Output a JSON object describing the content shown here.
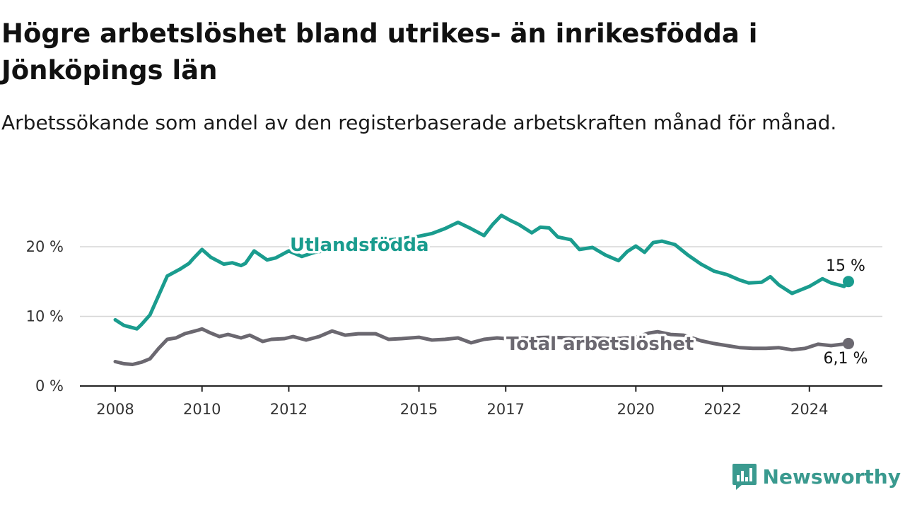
{
  "title": "Högre arbetslöshet bland utrikes- än inrikesfödda i Jönköpings län",
  "subtitle": "Arbetssökande som andel av den registerbaserade arbetskraften månad för månad.",
  "brand": {
    "name": "Newsworthy",
    "icon": "bar-chart-speech-bubble-icon",
    "color": "#3a9a8f"
  },
  "chart_data": {
    "type": "line",
    "x_unit": "year",
    "xlim": [
      2008,
      2025.2
    ],
    "ylim": [
      0,
      20
    ],
    "x_ticks": [
      2008,
      2010,
      2012,
      2015,
      2017,
      2020,
      2022,
      2024
    ],
    "x_tick_labels": [
      "2008",
      "2010",
      "2012",
      "2015",
      "2017",
      "2020",
      "2022",
      "2024"
    ],
    "y_ticks": [
      0,
      10,
      20
    ],
    "y_tick_labels": [
      "0 %",
      "10 %",
      "20 %"
    ],
    "grid": "horizontal",
    "legend": "direct-labels",
    "series": [
      {
        "name": "Utlandsfödda",
        "color": "#1a9c8e",
        "end_label": "15 %",
        "x": [
          2008.0,
          2008.2,
          2008.5,
          2008.6,
          2008.8,
          2009.0,
          2009.2,
          2009.5,
          2009.7,
          2009.8,
          2010.0,
          2010.2,
          2010.5,
          2010.7,
          2010.9,
          2011.0,
          2011.2,
          2011.5,
          2011.7,
          2012.0,
          2012.3,
          2012.6,
          2013.0,
          2013.5,
          2014.0,
          2014.5,
          2015.0,
          2015.3,
          2015.6,
          2015.9,
          2016.2,
          2016.5,
          2016.7,
          2016.9,
          2017.1,
          2017.3,
          2017.6,
          2017.8,
          2018.0,
          2018.2,
          2018.5,
          2018.7,
          2019.0,
          2019.3,
          2019.6,
          2019.8,
          2020.0,
          2020.2,
          2020.4,
          2020.6,
          2020.9,
          2021.2,
          2021.5,
          2021.8,
          2022.1,
          2022.4,
          2022.6,
          2022.9,
          2023.1,
          2023.3,
          2023.6,
          2023.8,
          2024.0,
          2024.3,
          2024.5,
          2024.8,
          2024.9
        ],
        "y": [
          9.5,
          8.7,
          8.2,
          8.8,
          10.2,
          13.0,
          15.8,
          16.8,
          17.6,
          18.3,
          19.6,
          18.5,
          17.5,
          17.7,
          17.3,
          17.6,
          19.4,
          18.1,
          18.4,
          19.4,
          18.6,
          19.2,
          19.6,
          20.2,
          20.8,
          21.1,
          21.5,
          21.9,
          22.6,
          23.5,
          22.6,
          21.6,
          23.2,
          24.5,
          23.8,
          23.2,
          22.0,
          22.8,
          22.7,
          21.4,
          21.0,
          19.6,
          19.9,
          18.8,
          18.0,
          19.3,
          20.1,
          19.2,
          20.6,
          20.8,
          20.3,
          18.8,
          17.5,
          16.5,
          16.0,
          15.2,
          14.8,
          14.9,
          15.7,
          14.5,
          13.3,
          13.8,
          14.3,
          15.4,
          14.8,
          14.3,
          15.0
        ]
      },
      {
        "name": "Total arbetslöshet",
        "color": "#6b6870",
        "end_label": "6,1 %",
        "x": [
          2008.0,
          2008.2,
          2008.4,
          2008.6,
          2008.8,
          2009.0,
          2009.2,
          2009.4,
          2009.6,
          2009.9,
          2010.0,
          2010.2,
          2010.4,
          2010.6,
          2010.9,
          2011.1,
          2011.4,
          2011.6,
          2011.9,
          2012.1,
          2012.4,
          2012.7,
          2013.0,
          2013.3,
          2013.6,
          2014.0,
          2014.3,
          2014.6,
          2015.0,
          2015.3,
          2015.6,
          2015.9,
          2016.2,
          2016.5,
          2016.8,
          2017.0,
          2017.5,
          2018.0,
          2018.5,
          2019.0,
          2019.5,
          2020.0,
          2020.3,
          2020.5,
          2020.8,
          2021.1,
          2021.5,
          2021.8,
          2022.1,
          2022.4,
          2022.7,
          2023.0,
          2023.3,
          2023.6,
          2023.9,
          2024.2,
          2024.5,
          2024.9
        ],
        "y": [
          3.5,
          3.2,
          3.1,
          3.4,
          3.9,
          5.4,
          6.7,
          6.9,
          7.5,
          8.0,
          8.2,
          7.6,
          7.1,
          7.4,
          6.9,
          7.3,
          6.4,
          6.7,
          6.8,
          7.1,
          6.6,
          7.1,
          7.9,
          7.3,
          7.5,
          7.5,
          6.7,
          6.8,
          7.0,
          6.6,
          6.7,
          6.9,
          6.2,
          6.7,
          6.9,
          6.8,
          6.9,
          7.0,
          6.9,
          6.9,
          6.8,
          7.0,
          7.6,
          7.8,
          7.4,
          7.3,
          6.5,
          6.1,
          5.8,
          5.5,
          5.4,
          5.4,
          5.5,
          5.2,
          5.4,
          6.0,
          5.8,
          6.1
        ]
      }
    ]
  }
}
